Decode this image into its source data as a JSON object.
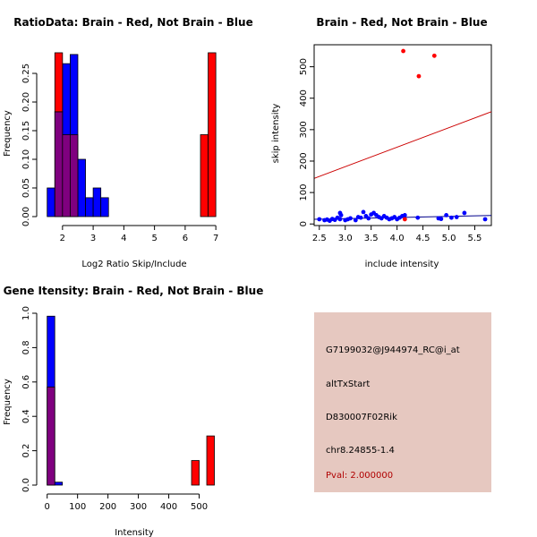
{
  "chart_data": [
    {
      "id": "ratio",
      "type": "histogram",
      "title": "RatioData: Brain - Red, Not Brain - Blue",
      "xlabel": "Log2 Ratio Skip/Include",
      "ylabel": "Frequency",
      "xlim": [
        1.45,
        7.2
      ],
      "ylim": [
        0,
        0.3
      ],
      "xticks": [
        "2",
        "3",
        "4",
        "5",
        "6",
        "7"
      ],
      "xtick_values": [
        2,
        3,
        4,
        5,
        6,
        7
      ],
      "yticks": [
        "0.00",
        "0.05",
        "0.10",
        "0.15",
        "0.20",
        "0.25"
      ],
      "ytick_values": [
        0,
        0.05,
        0.1,
        0.15,
        0.2,
        0.25
      ],
      "series": [
        {
          "name": "Not Brain",
          "color": "#0000ff",
          "bins": [
            [
              1.5,
              1.75,
              0.05
            ],
            [
              1.75,
              2.0,
              0.183
            ],
            [
              2.0,
              2.25,
              0.267
            ],
            [
              2.25,
              2.5,
              0.283
            ],
            [
              2.5,
              2.75,
              0.1
            ],
            [
              2.75,
              3.0,
              0.033
            ],
            [
              3.0,
              3.25,
              0.05
            ],
            [
              3.25,
              3.5,
              0.033
            ]
          ]
        },
        {
          "name": "Brain",
          "color": "#ff0000",
          "bins": [
            [
              1.75,
              2.0,
              0.286
            ],
            [
              2.0,
              2.25,
              0.143
            ],
            [
              2.25,
              2.5,
              0.143
            ],
            [
              6.5,
              6.75,
              0.143
            ],
            [
              6.75,
              7.0,
              0.286
            ]
          ]
        }
      ],
      "overlap_color": "#7f007f"
    },
    {
      "id": "scatter",
      "type": "scatter",
      "title": "Brain - Red, Not Brain - Blue",
      "xlabel": "include intensity",
      "ylabel": "skip intensity",
      "xlim": [
        2.4,
        5.82
      ],
      "ylim": [
        -5,
        570
      ],
      "xticks": [
        "2.5",
        "3.0",
        "3.5",
        "4.0",
        "4.5",
        "5.0",
        "5.5"
      ],
      "xtick_values": [
        2.5,
        3.0,
        3.5,
        4.0,
        4.5,
        5.0,
        5.5
      ],
      "yticks": [
        "0",
        "100",
        "200",
        "300",
        "400",
        "500"
      ],
      "ytick_values": [
        0,
        100,
        200,
        300,
        400,
        500
      ],
      "series": [
        {
          "name": "Not Brain",
          "color": "#0000ff",
          "points": [
            [
              2.5,
              15
            ],
            [
              2.6,
              12
            ],
            [
              2.65,
              14
            ],
            [
              2.7,
              10
            ],
            [
              2.75,
              16
            ],
            [
              2.8,
              13
            ],
            [
              2.85,
              20
            ],
            [
              2.9,
              15
            ],
            [
              2.9,
              35
            ],
            [
              2.92,
              28
            ],
            [
              3.0,
              12
            ],
            [
              3.05,
              15
            ],
            [
              3.1,
              18
            ],
            [
              3.2,
              12
            ],
            [
              3.25,
              22
            ],
            [
              3.3,
              20
            ],
            [
              3.35,
              38
            ],
            [
              3.4,
              25
            ],
            [
              3.45,
              18
            ],
            [
              3.5,
              30
            ],
            [
              3.55,
              35
            ],
            [
              3.6,
              28
            ],
            [
              3.65,
              22
            ],
            [
              3.7,
              18
            ],
            [
              3.75,
              25
            ],
            [
              3.8,
              20
            ],
            [
              3.85,
              15
            ],
            [
              3.9,
              18
            ],
            [
              3.95,
              22
            ],
            [
              4.0,
              15
            ],
            [
              4.05,
              20
            ],
            [
              4.1,
              25
            ],
            [
              4.15,
              28
            ],
            [
              4.4,
              20
            ],
            [
              4.8,
              18
            ],
            [
              4.85,
              16
            ],
            [
              4.95,
              28
            ],
            [
              5.05,
              20
            ],
            [
              5.15,
              22
            ],
            [
              5.3,
              35
            ],
            [
              5.7,
              15
            ]
          ]
        },
        {
          "name": "Brain",
          "color": "#ff0000",
          "points": [
            [
              4.12,
              550
            ],
            [
              4.42,
              470
            ],
            [
              4.72,
              535
            ],
            [
              4.15,
              15
            ]
          ]
        }
      ],
      "fit_lines": [
        {
          "color": "#cc0000",
          "x": [
            2.4,
            5.82
          ],
          "y": [
            145,
            357
          ]
        },
        {
          "color": "#00008b",
          "x": [
            2.4,
            5.82
          ],
          "y": [
            15,
            27
          ]
        }
      ]
    },
    {
      "id": "intensity",
      "type": "histogram",
      "title": "Gene Itensity: Brain - Red, Not Brain - Blue",
      "xlabel": "Intensity",
      "ylabel": "Frequency",
      "xlim": [
        -5,
        575
      ],
      "ylim": [
        0,
        1.0
      ],
      "xticks": [
        "0",
        "100",
        "200",
        "300",
        "400",
        "500"
      ],
      "xtick_values": [
        0,
        100,
        200,
        300,
        400,
        500
      ],
      "yticks": [
        "0.0",
        "0.2",
        "0.4",
        "0.6",
        "0.8",
        "1.0"
      ],
      "ytick_values": [
        0,
        0.2,
        0.4,
        0.6,
        0.8,
        1.0
      ],
      "series": [
        {
          "name": "Not Brain",
          "color": "#0000ff",
          "bins": [
            [
              0,
              25,
              0.983
            ],
            [
              25,
              50,
              0.017
            ]
          ]
        },
        {
          "name": "Brain",
          "color": "#ff0000",
          "bins": [
            [
              0,
              25,
              0.571
            ],
            [
              475,
              500,
              0.143
            ],
            [
              525,
              550,
              0.286
            ]
          ]
        }
      ],
      "overlap_color": "#7f007f"
    }
  ],
  "info_panel": {
    "probe": "G7199032@J944974_RC@i_at",
    "event": "altTxStart",
    "gene": "D830007F02Rik",
    "location": "chr8.24855-1.4",
    "pval": "Pval: 2.000000",
    "background": "#e6c8c0"
  }
}
